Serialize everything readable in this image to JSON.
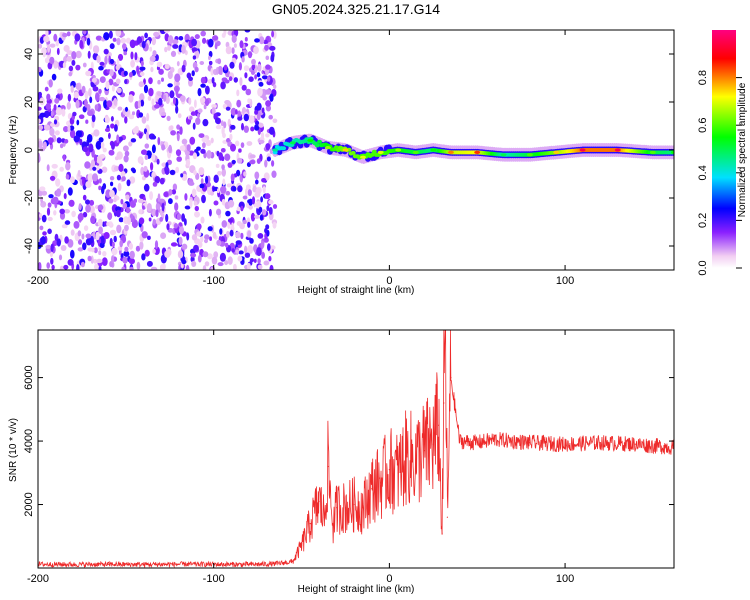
{
  "chart_data": [
    {
      "type": "heatmap",
      "title": "GN05.2024.325.21.17.G14",
      "xlabel": "Height of straight line (km)",
      "ylabel": "Frequency (Hz)",
      "xlim": [
        -200,
        162
      ],
      "ylim": [
        -50,
        50
      ],
      "xticks": [
        -200,
        -100,
        0,
        100
      ],
      "yticks": [
        -40,
        -20,
        0,
        20,
        40
      ],
      "grid": false,
      "colorbar": {
        "label": "Normalized spectral amplitude",
        "range": [
          0,
          1
        ],
        "ticks": [
          0.0,
          0.2,
          0.4,
          0.6,
          0.8
        ],
        "tick_labels": [
          "0.0",
          "0.2",
          "0.4",
          "0.6",
          "0.8"
        ],
        "colormap": [
          "#ffffff",
          "#f4d0f4",
          "#8000ff",
          "#0000ff",
          "#00e0ff",
          "#00ff00",
          "#ffff00",
          "#ff0000",
          "#ff0080"
        ]
      },
      "noise_region": {
        "x_range": [
          -200,
          -65
        ],
        "amplitude": "low (0.0-0.25)"
      },
      "signal_track": [
        {
          "x": -65,
          "freq": 0,
          "amplitude": 0.45
        },
        {
          "x": -55,
          "freq": 3,
          "amplitude": 0.5
        },
        {
          "x": -45,
          "freq": 4,
          "amplitude": 0.55
        },
        {
          "x": -35,
          "freq": 1,
          "amplitude": 0.65
        },
        {
          "x": -25,
          "freq": 0,
          "amplitude": 0.75
        },
        {
          "x": -15,
          "freq": -3,
          "amplitude": 0.7
        },
        {
          "x": -5,
          "freq": -1,
          "amplitude": 0.7
        },
        {
          "x": 5,
          "freq": 0,
          "amplitude": 0.65
        },
        {
          "x": 15,
          "freq": -1,
          "amplitude": 0.6
        },
        {
          "x": 25,
          "freq": 0,
          "amplitude": 0.55
        },
        {
          "x": 35,
          "freq": -1,
          "amplitude": 0.8
        },
        {
          "x": 50,
          "freq": -1,
          "amplitude": 0.85
        },
        {
          "x": 65,
          "freq": -2,
          "amplitude": 0.5
        },
        {
          "x": 80,
          "freq": -2,
          "amplitude": 0.6
        },
        {
          "x": 95,
          "freq": -1,
          "amplitude": 0.75
        },
        {
          "x": 110,
          "freq": 0,
          "amplitude": 0.95
        },
        {
          "x": 130,
          "freq": 0,
          "amplitude": 0.95
        },
        {
          "x": 150,
          "freq": -1,
          "amplitude": 0.6
        },
        {
          "x": 162,
          "freq": -1,
          "amplitude": 0.55
        }
      ]
    },
    {
      "type": "line",
      "xlabel": "Height of straight line (km)",
      "ylabel": "SNR (10 * v/v)",
      "xlim": [
        -200,
        162
      ],
      "ylim": [
        0,
        7500
      ],
      "xticks": [
        -200,
        -100,
        0,
        100
      ],
      "yticks": [
        2000,
        4000,
        6000
      ],
      "grid": false,
      "series": [
        {
          "color": "#ee2a2a",
          "x": [
            -200,
            -180,
            -160,
            -140,
            -120,
            -100,
            -80,
            -65,
            -55,
            -50,
            -45,
            -40,
            -37,
            -35,
            -32,
            -30,
            -25,
            -20,
            -15,
            -10,
            -5,
            0,
            5,
            10,
            15,
            20,
            25,
            28,
            30,
            31,
            32,
            33,
            35,
            40,
            50,
            60,
            80,
            100,
            120,
            140,
            162
          ],
          "y": [
            120,
            110,
            115,
            110,
            120,
            115,
            110,
            130,
            200,
            700,
            1400,
            2100,
            1600,
            3200,
            1300,
            1900,
            1900,
            2000,
            1900,
            2500,
            2700,
            3100,
            3000,
            3500,
            3400,
            3700,
            3900,
            4500,
            1100,
            5200,
            7500,
            1600,
            6000,
            4000,
            3950,
            4050,
            3950,
            3900,
            3950,
            3900,
            3800
          ]
        }
      ]
    }
  ]
}
